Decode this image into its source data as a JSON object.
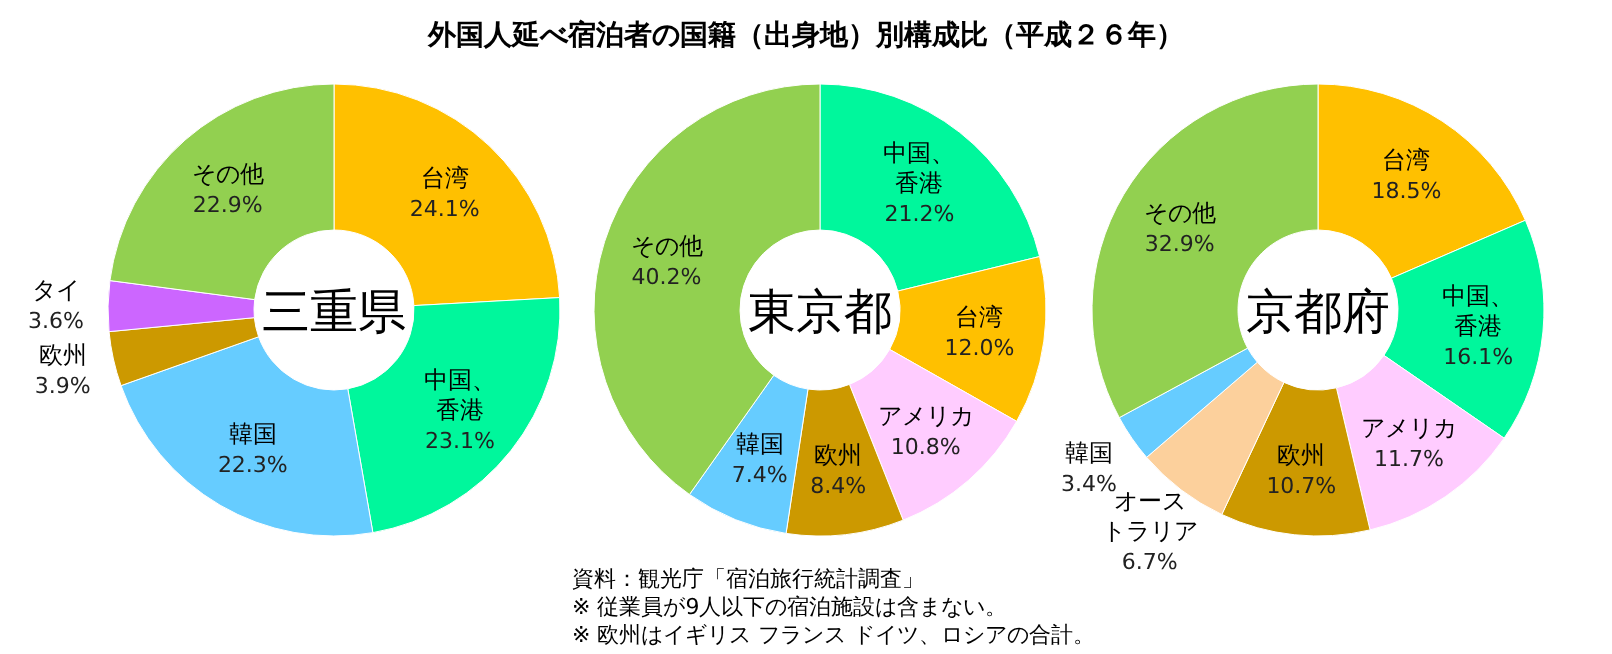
{
  "chart_data": [
    {
      "type": "donut",
      "title": "三重県",
      "categories": [
        "台湾",
        "中国、香港",
        "韓国",
        "欧州",
        "タイ",
        "その他"
      ],
      "values": [
        24.1,
        23.1,
        22.3,
        3.9,
        3.6,
        22.9
      ],
      "value_labels": [
        "24.1%",
        "23.1%",
        "22.3%",
        "3.9%",
        "3.6%",
        "22.9%"
      ],
      "colors": [
        "#ffc000",
        "#00f79c",
        "#66ccff",
        "#cc9900",
        "#cc66ff",
        "#92d050"
      ]
    },
    {
      "type": "donut",
      "title": "東京都",
      "categories": [
        "中国、香港",
        "台湾",
        "アメリカ",
        "欧州",
        "韓国",
        "その他"
      ],
      "values": [
        21.2,
        12.0,
        10.8,
        8.4,
        7.4,
        40.2
      ],
      "value_labels": [
        "21.2%",
        "12.0%",
        "10.8%",
        "8.4%",
        "7.4%",
        "40.2%"
      ],
      "colors": [
        "#00f79c",
        "#ffc000",
        "#ffccff",
        "#cc9900",
        "#66ccff",
        "#92d050"
      ]
    },
    {
      "type": "donut",
      "title": "京都府",
      "categories": [
        "台湾",
        "中国、香港",
        "アメリカ",
        "欧州",
        "オーストラリア",
        "韓国",
        "その他"
      ],
      "values": [
        18.5,
        16.1,
        11.7,
        10.7,
        6.7,
        3.4,
        32.9
      ],
      "value_labels": [
        "18.5%",
        "16.1%",
        "11.7%",
        "10.7%",
        "6.7%",
        "3.4%",
        "32.9%"
      ],
      "colors": [
        "#ffc000",
        "#00f79c",
        "#ffccff",
        "#cc9900",
        "#fcd09c",
        "#66ccff",
        "#92d050"
      ]
    },
    {
      "type": "other",
      "title": "外国人延べ宿泊者の国籍（出身地）別構成比（平成２６年）",
      "annotations": [
        "資料：観光庁「宿泊旅行統計調査」",
        "※ 従業員が9人以下の宿泊施設は含まない。",
        "※ 欧州はイギリス フランス ドイツ、ロシアの合計。"
      ]
    }
  ]
}
